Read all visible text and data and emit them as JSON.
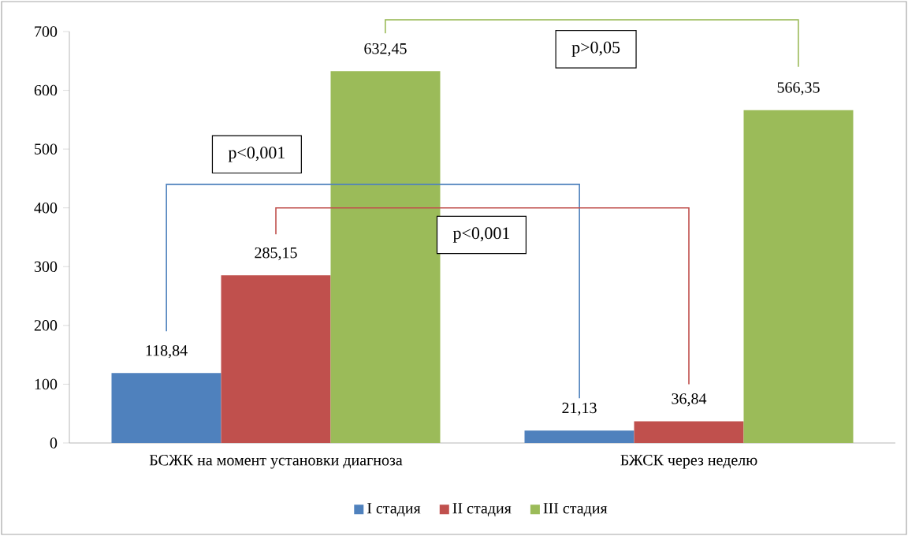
{
  "chart_data": {
    "type": "bar",
    "categories": [
      "БСЖК на момент установки диагноза",
      "БЖСК через неделю"
    ],
    "series": [
      {
        "name": "I стадия",
        "color": "#4f81bd",
        "values": [
          118.84,
          21.13
        ],
        "value_labels": [
          "118,84",
          "21,13"
        ]
      },
      {
        "name": "II стадия",
        "color": "#c0504d",
        "values": [
          285.15,
          36.84
        ],
        "value_labels": [
          "285,15",
          "36,84"
        ]
      },
      {
        "name": "III стадия",
        "color": "#9bbb59",
        "values": [
          632.45,
          566.35
        ],
        "value_labels": [
          "632,45",
          "566,35"
        ]
      }
    ],
    "ylim": [
      0,
      700
    ],
    "yticks": [
      0,
      100,
      200,
      300,
      400,
      500,
      600,
      700
    ],
    "grid": false,
    "legend": "bottom",
    "annotations": [
      "p<0,001",
      "p<0,001",
      "p>0,05"
    ]
  }
}
